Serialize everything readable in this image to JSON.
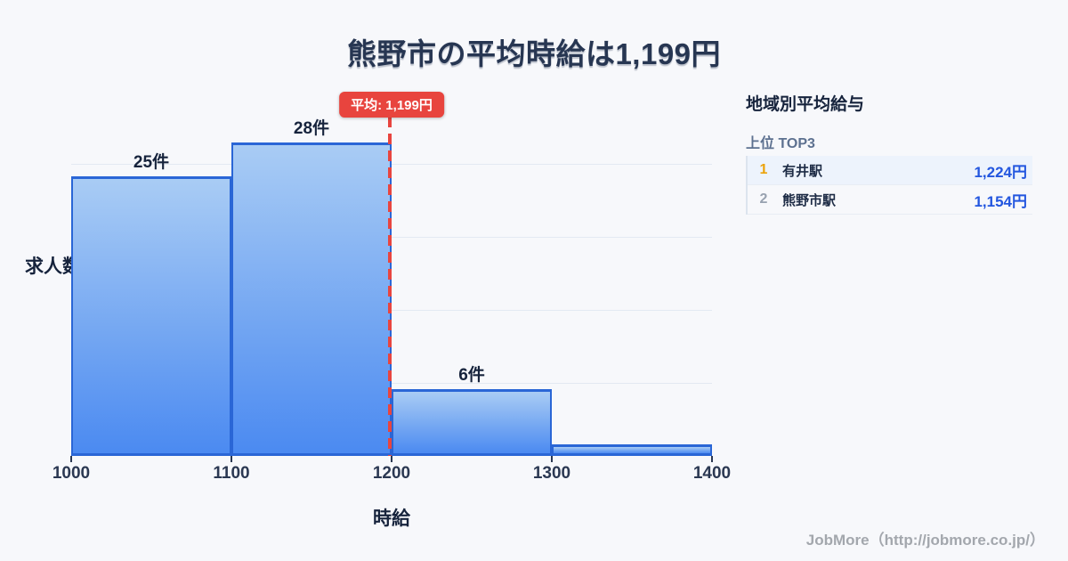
{
  "title": "熊野市の平均時給は1,199円",
  "chart_data": {
    "type": "bar",
    "title": "熊野市の平均時給は1,199円",
    "xlabel": "時給",
    "ylabel": "求人数",
    "categories": [
      "1000-1100",
      "1100-1200",
      "1200-1300",
      "1300-1400"
    ],
    "values": [
      25,
      28,
      6,
      1
    ],
    "bar_labels": [
      "25件",
      "28件",
      "6件",
      ""
    ],
    "x_ticks": [
      "1000",
      "1100",
      "1200",
      "1300",
      "1400"
    ],
    "xlim": [
      1000,
      1400
    ],
    "grid": true,
    "average_line": {
      "value": 1199,
      "label": "平均: 1,199円",
      "color": "#e8453f"
    },
    "colors": {
      "bar_fill_top": "#a9ccf4",
      "bar_fill_bottom": "#4b8af1",
      "bar_border": "#2a66d6",
      "background": "#f7f8fb"
    }
  },
  "side_panel": {
    "heading": "地域別平均給与",
    "subheading": "上位 TOP3",
    "rank_colors": {
      "first": "#eca30a",
      "other": "#98a2b0"
    },
    "value_color": "#2356df",
    "rows": [
      {
        "rank": "1",
        "name": "有井駅",
        "value": "1,224円"
      },
      {
        "rank": "2",
        "name": "熊野市駅",
        "value": "1,154円"
      }
    ]
  },
  "footer": {
    "credit": "JobMore（http://jobmore.co.jp/）"
  }
}
